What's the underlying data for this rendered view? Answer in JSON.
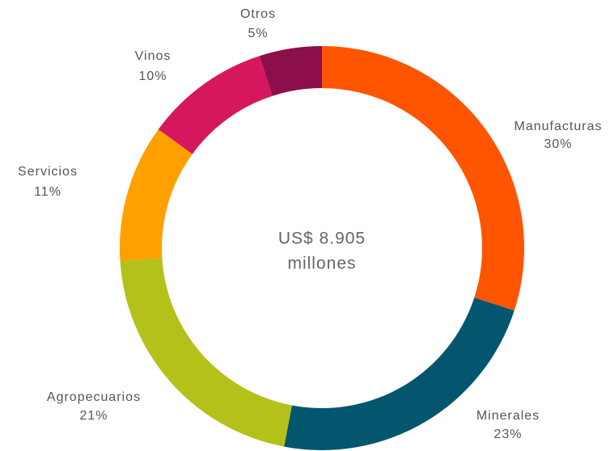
{
  "chart_data": {
    "type": "donut",
    "center_label": [
      "US$ 8.905",
      "millones"
    ],
    "categories": [
      "Manufacturas",
      "Minerales",
      "Agropecuarios",
      "Servicios",
      "Vinos",
      "Otros"
    ],
    "values": [
      30,
      23,
      21,
      11,
      10,
      5
    ],
    "value_labels": [
      "30%",
      "23%",
      "21%",
      "11%",
      "10%",
      "5%"
    ],
    "colors": [
      "#ff5500",
      "#03566e",
      "#b4c11a",
      "#ffa000",
      "#d6175e",
      "#8c0f4c"
    ]
  }
}
